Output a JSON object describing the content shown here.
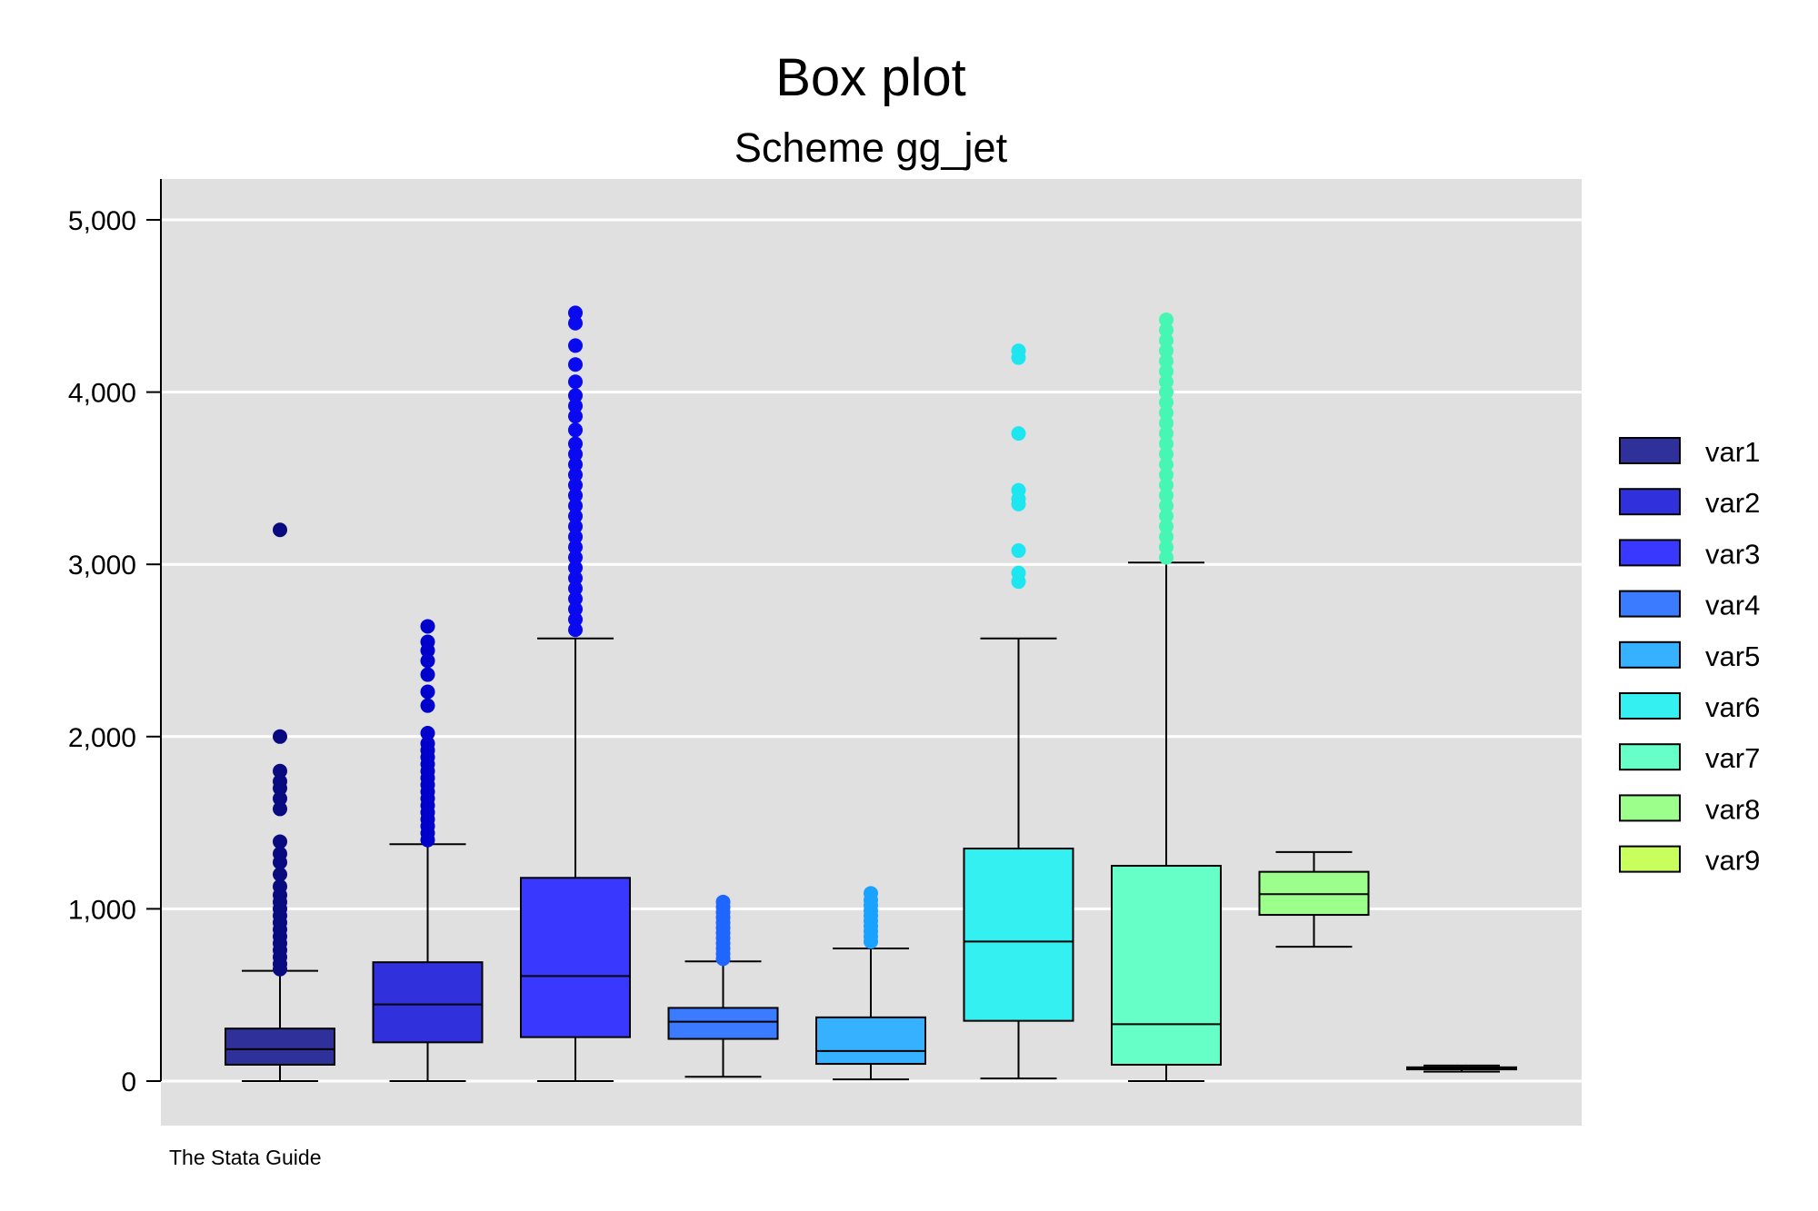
{
  "chart_data": {
    "type": "box",
    "title": "Box plot",
    "subtitle": "Scheme gg_jet",
    "note": "The Stata Guide",
    "ylim": [
      0,
      5000
    ],
    "yticks": [
      0,
      1000,
      2000,
      3000,
      4000,
      5000
    ],
    "ytick_labels": [
      "0",
      "1,000",
      "2,000",
      "3,000",
      "4,000",
      "5,000"
    ],
    "grid": true,
    "legend_position": "right",
    "series": [
      {
        "name": "var1",
        "color": "#30309a",
        "outlier_color": "#0a0a80",
        "min": 0,
        "q1": 95,
        "median": 185,
        "q3": 305,
        "max": 640,
        "outliers": [
          650,
          680,
          720,
          760,
          800,
          840,
          880,
          920,
          960,
          1000,
          1040,
          1080,
          1130,
          1200,
          1270,
          1320,
          1390,
          1580,
          1640,
          1700,
          1740,
          1800,
          2000,
          3200
        ]
      },
      {
        "name": "var2",
        "color": "#3030dc",
        "outlier_color": "#0000cc",
        "min": 0,
        "q1": 225,
        "median": 445,
        "q3": 690,
        "max": 1375,
        "outliers": [
          1400,
          1440,
          1480,
          1520,
          1560,
          1600,
          1640,
          1680,
          1720,
          1760,
          1800,
          1840,
          1880,
          1920,
          1960,
          2020,
          2180,
          2260,
          2360,
          2440,
          2500,
          2550,
          2640
        ]
      },
      {
        "name": "var3",
        "color": "#3838ff",
        "outlier_color": "#0a0af0",
        "min": 0,
        "q1": 255,
        "median": 610,
        "q3": 1180,
        "max": 2570,
        "outliers": [
          2620,
          2680,
          2740,
          2800,
          2860,
          2920,
          2980,
          3040,
          3100,
          3160,
          3220,
          3280,
          3340,
          3400,
          3460,
          3520,
          3580,
          3640,
          3700,
          3780,
          3860,
          3920,
          3980,
          4060,
          4160,
          4270,
          4400,
          4460
        ]
      },
      {
        "name": "var4",
        "color": "#3a7bff",
        "outlier_color": "#1e66ff",
        "min": 25,
        "q1": 245,
        "median": 345,
        "q3": 425,
        "max": 695,
        "outliers": [
          710,
          740,
          770,
          800,
          830,
          860,
          890,
          920,
          950,
          980,
          1010,
          1040
        ]
      },
      {
        "name": "var5",
        "color": "#35b1ff",
        "outlier_color": "#19a2ff",
        "min": 10,
        "q1": 100,
        "median": 175,
        "q3": 370,
        "max": 770,
        "outliers": [
          810,
          840,
          870,
          900,
          930,
          960,
          990,
          1020,
          1050,
          1090
        ]
      },
      {
        "name": "var6",
        "color": "#35f0f0",
        "outlier_color": "#1ee6f0",
        "min": 15,
        "q1": 350,
        "median": 810,
        "q3": 1350,
        "max": 2570,
        "outliers": [
          2900,
          2950,
          3080,
          3350,
          3380,
          3430,
          3760,
          4200,
          4240
        ]
      },
      {
        "name": "var7",
        "color": "#66ffc8",
        "outlier_color": "#46f7b4",
        "min": 0,
        "q1": 95,
        "median": 330,
        "q3": 1250,
        "max": 3010,
        "outliers": [
          3040,
          3100,
          3160,
          3220,
          3280,
          3340,
          3400,
          3460,
          3520,
          3580,
          3640,
          3700,
          3760,
          3820,
          3880,
          3940,
          4000,
          4060,
          4120,
          4180,
          4240,
          4300,
          4360,
          4420
        ]
      },
      {
        "name": "var8",
        "color": "#9cff8c",
        "outlier_color": "#88f578",
        "min": 780,
        "q1": 965,
        "median": 1085,
        "q3": 1215,
        "max": 1330,
        "outliers": []
      },
      {
        "name": "var9",
        "color": "#c8ff5c",
        "outlier_color": "#b4f046",
        "min": 55,
        "q1": 68,
        "median": 75,
        "q3": 80,
        "max": 90,
        "outliers": []
      }
    ]
  }
}
